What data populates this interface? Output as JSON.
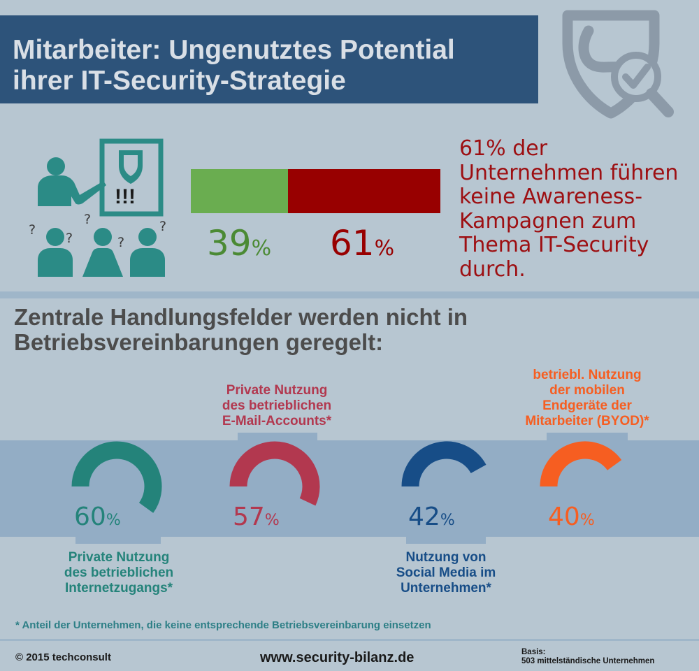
{
  "title": {
    "line1": "Mitarbeiter: Ungenutztes Potential",
    "line2": "ihrer IT-Security-Strategie"
  },
  "awareness": {
    "bar": {
      "green_value": 39,
      "red_value": 61
    },
    "green_label": "39",
    "red_label": "61",
    "unit": "%",
    "text": "61% der Unternehmen führen keine Awareness-Kampagnen zum Thema IT-Security durch.",
    "colors": {
      "green": "#6aad50",
      "red": "#980000"
    }
  },
  "presentation_icon": {
    "board_text": "!!!",
    "question_mark": "?"
  },
  "heading": {
    "line1": "Zentrale Handlungsfelder werden nicht in",
    "line2": "Betriebsvereinbarungen geregelt:"
  },
  "chart_data": {
    "type": "donut",
    "unit": "%",
    "items": [
      {
        "value": 60,
        "value_label": "60",
        "label_lines": [
          "Private Nutzung",
          "des betrieblichen",
          "Internetzugangs*"
        ],
        "color": "#24837a",
        "label_color": "#24837a"
      },
      {
        "value": 57,
        "value_label": "57",
        "label_lines": [
          "Private Nutzung",
          "des betrieblichen",
          "E-Mail-Accounts*"
        ],
        "color": "#b2384f",
        "label_color": "#b2384f"
      },
      {
        "value": 42,
        "value_label": "42",
        "label_lines": [
          "Nutzung von",
          "Social Media im",
          "Unternehmen*"
        ],
        "color": "#174d87",
        "label_color": "#174d87"
      },
      {
        "value": 40,
        "value_label": "40",
        "label_lines": [
          "betriebl. Nutzung",
          "der mobilen",
          "Endgeräte der",
          "Mitarbeiter (BYOD)*"
        ],
        "color": "#f65e21",
        "label_color": "#f65e21"
      }
    ]
  },
  "footnote": "* Anteil der Unternehmen, die keine entsprechende Betriebsvereinbarung einsetzen",
  "footer": {
    "copyright": "© 2015 techconsult",
    "website": "www.security-bilanz.de",
    "basis_label": "Basis:",
    "basis_text": "503 mittelständische Unternehmen"
  },
  "icons": [
    "shield-magnifier-icon",
    "presentation-icon"
  ]
}
